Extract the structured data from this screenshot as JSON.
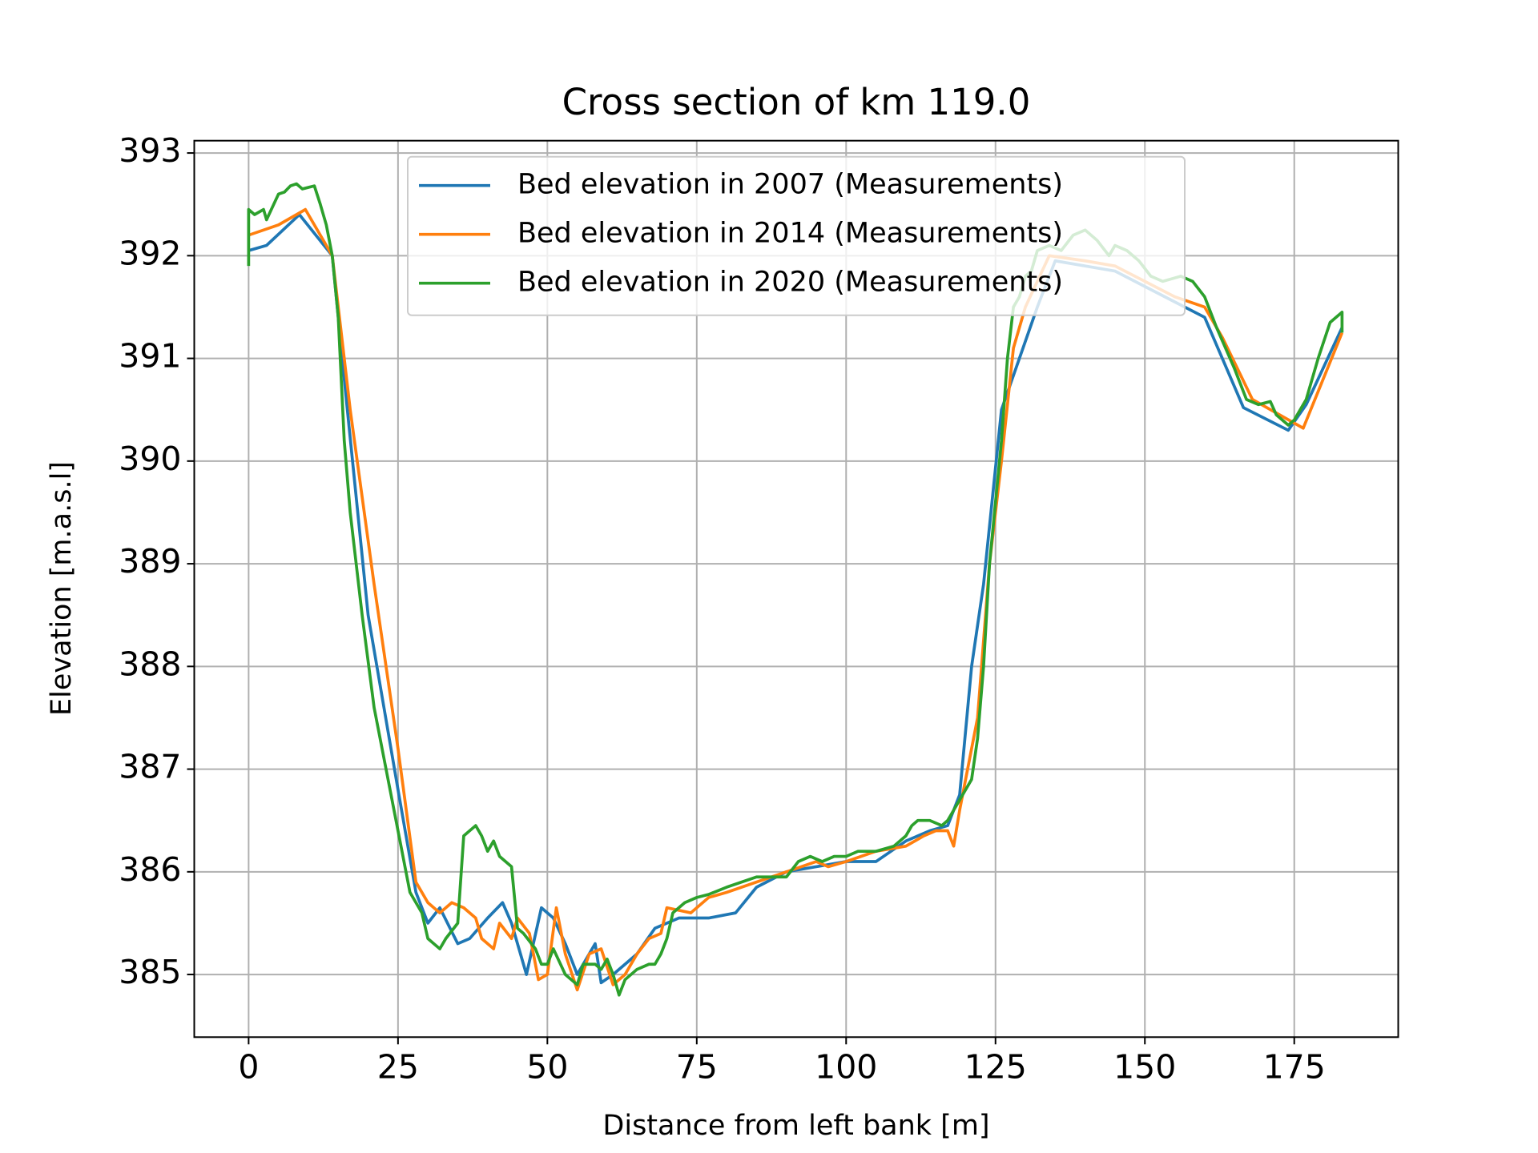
{
  "chart_data": {
    "type": "line",
    "title": "Cross section of km 119.0",
    "x_label": "Distance from left bank [m]",
    "y_label": "Elevation [m.a.s.l]",
    "xlim": [
      -9.1,
      192.4
    ],
    "ylim": [
      384.39,
      393.12
    ],
    "xticks": [
      0,
      25,
      50,
      75,
      100,
      125,
      150,
      175
    ],
    "yticks": [
      385,
      386,
      387,
      388,
      389,
      390,
      391,
      392,
      393
    ],
    "grid": true,
    "legend": "upper center",
    "series": [
      {
        "name": "Bed elevation in 2007 (Measurements)",
        "color": "#1f77b4",
        "x": [
          0,
          3,
          8.5,
          14,
          16,
          20,
          25,
          28,
          30,
          32,
          35,
          37,
          40,
          42.5,
          44,
          46.5,
          49,
          51,
          53,
          55,
          58,
          59,
          61,
          65,
          68,
          72,
          77,
          81.5,
          85,
          90,
          95,
          100,
          105,
          110,
          114,
          117,
          119,
          121,
          123,
          126,
          129,
          132,
          135,
          140,
          145,
          150,
          155,
          160,
          166.5,
          174,
          177,
          183
        ],
        "values": [
          392.05,
          392.1,
          392.4,
          392.0,
          390.8,
          388.5,
          386.8,
          385.8,
          385.5,
          385.65,
          385.3,
          385.35,
          385.55,
          385.7,
          385.5,
          385.0,
          385.65,
          385.55,
          385.3,
          385.0,
          385.3,
          384.92,
          385.0,
          385.2,
          385.45,
          385.55,
          385.55,
          385.6,
          385.85,
          386.0,
          386.05,
          386.1,
          386.1,
          386.3,
          386.4,
          386.45,
          386.75,
          388.0,
          388.8,
          390.5,
          391.0,
          391.5,
          391.95,
          391.9,
          391.85,
          391.7,
          391.55,
          391.4,
          390.52,
          390.3,
          390.55,
          391.3
        ]
      },
      {
        "name": "Bed elevation in 2014 (Measurements)",
        "color": "#ff7f0e",
        "x": [
          0,
          5,
          9.5,
          14,
          17,
          21,
          25,
          28,
          30,
          32,
          34,
          36,
          38,
          39,
          41,
          42,
          44,
          45,
          47,
          48.5,
          50,
          51.5,
          53,
          55,
          57,
          59,
          61,
          63,
          65,
          67,
          69,
          70,
          74,
          77,
          80,
          85,
          90,
          95,
          97,
          100,
          105,
          110,
          113,
          115,
          117,
          118,
          119,
          122,
          124,
          126,
          128,
          130,
          134,
          140,
          145,
          150,
          155,
          160,
          163,
          168,
          176.5,
          183
        ],
        "values": [
          392.2,
          392.3,
          392.45,
          392.0,
          390.5,
          388.8,
          387.2,
          385.9,
          385.7,
          385.6,
          385.7,
          385.65,
          385.55,
          385.35,
          385.25,
          385.5,
          385.35,
          385.55,
          385.4,
          384.95,
          385.0,
          385.65,
          385.2,
          384.85,
          385.2,
          385.25,
          384.9,
          385.0,
          385.2,
          385.35,
          385.4,
          385.65,
          385.6,
          385.75,
          385.8,
          385.9,
          386.0,
          386.1,
          386.05,
          386.1,
          386.2,
          386.25,
          386.35,
          386.4,
          386.4,
          386.25,
          386.6,
          387.5,
          389.0,
          390.0,
          391.1,
          391.5,
          392.0,
          391.95,
          391.9,
          391.75,
          391.6,
          391.5,
          391.2,
          390.6,
          390.32,
          391.25
        ]
      },
      {
        "name": "Bed elevation in 2020 (Measurements)",
        "color": "#2ca02c",
        "x": [
          0,
          0,
          1,
          2.5,
          3,
          5,
          6,
          7,
          8,
          9,
          11,
          12,
          13,
          14,
          15,
          16,
          17,
          18,
          19,
          21,
          23,
          25,
          27,
          29,
          30,
          31,
          32,
          33,
          35,
          36,
          37,
          38,
          39,
          40,
          41,
          42,
          44,
          45,
          46,
          48,
          49,
          50,
          51,
          53,
          54,
          55,
          56,
          58,
          59,
          60,
          61,
          62,
          63,
          65,
          67,
          68,
          69,
          70,
          71,
          73,
          75,
          77,
          80,
          85,
          90,
          92,
          94,
          96,
          98,
          100,
          102,
          105,
          108,
          110,
          111,
          112,
          114,
          116,
          117,
          118,
          119,
          121,
          122,
          123,
          124,
          125,
          126,
          127,
          128,
          129,
          130,
          131,
          132,
          134,
          136,
          138,
          140,
          142,
          144,
          145,
          147,
          149,
          151,
          153,
          156,
          158,
          160,
          162,
          165,
          167,
          169,
          171,
          172,
          174,
          175,
          177,
          179,
          181,
          183,
          183
        ],
        "values": [
          391.9,
          392.45,
          392.4,
          392.45,
          392.35,
          392.6,
          392.62,
          392.68,
          392.7,
          392.65,
          392.68,
          392.5,
          392.3,
          392.0,
          391.4,
          390.2,
          389.5,
          389.0,
          388.5,
          387.6,
          387.0,
          386.4,
          385.8,
          385.6,
          385.35,
          385.3,
          385.25,
          385.35,
          385.5,
          386.35,
          386.4,
          386.45,
          386.35,
          386.2,
          386.3,
          386.15,
          386.05,
          385.45,
          385.4,
          385.25,
          385.1,
          385.1,
          385.25,
          385.0,
          384.95,
          384.9,
          385.1,
          385.1,
          385.05,
          385.15,
          385.0,
          384.8,
          384.95,
          385.05,
          385.1,
          385.1,
          385.2,
          385.35,
          385.6,
          385.7,
          385.75,
          385.78,
          385.85,
          385.95,
          385.95,
          386.1,
          386.15,
          386.1,
          386.15,
          386.15,
          386.2,
          386.2,
          386.25,
          386.35,
          386.45,
          386.5,
          386.5,
          386.45,
          386.5,
          386.6,
          386.7,
          386.9,
          387.3,
          388.0,
          389.0,
          389.6,
          390.2,
          391.0,
          391.5,
          391.6,
          391.8,
          391.85,
          392.05,
          392.1,
          392.05,
          392.2,
          392.25,
          392.15,
          392.0,
          392.1,
          392.05,
          391.95,
          391.8,
          391.75,
          391.8,
          391.75,
          391.6,
          391.3,
          390.9,
          390.6,
          390.55,
          390.58,
          390.45,
          390.35,
          390.4,
          390.6,
          391.0,
          391.35,
          391.45,
          391.25
        ]
      }
    ]
  }
}
